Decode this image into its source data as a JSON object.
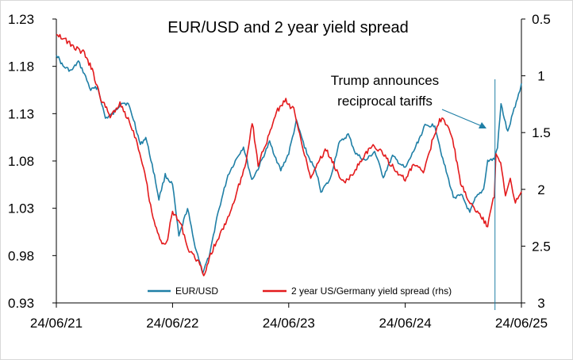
{
  "chart_data": {
    "type": "line",
    "title": "EUR/USD and 2 year yield spread",
    "colors": {
      "eurusd": "#1f7fa6",
      "spread": "#e31a1c"
    },
    "x_ticks": [
      "24/06/21",
      "24/06/22",
      "24/06/23",
      "24/06/24",
      "24/06/25"
    ],
    "y_left": {
      "ticks": [
        "1.23",
        "1.18",
        "1.13",
        "1.08",
        "1.03",
        "0.98",
        "0.93"
      ],
      "min": 0.93,
      "max": 1.23
    },
    "y_right": {
      "ticks": [
        "0.5",
        "1",
        "1.5",
        "2",
        "2.5",
        "3"
      ],
      "min": 0.5,
      "max": 3.0,
      "inverted": true
    },
    "legend_placement": "bottom",
    "annotation": {
      "line1": "Trump announces",
      "line2": "reciprocal tariffs",
      "date": "2025-04-02"
    },
    "series": [
      {
        "name": "EUR/USD",
        "axis": "left",
        "values": [
          [
            "2021-06-24",
            1.193
          ],
          [
            "2021-07-15",
            1.18
          ],
          [
            "2021-08-10",
            1.175
          ],
          [
            "2021-09-01",
            1.185
          ],
          [
            "2021-09-20",
            1.172
          ],
          [
            "2021-10-10",
            1.155
          ],
          [
            "2021-11-01",
            1.158
          ],
          [
            "2021-11-25",
            1.125
          ],
          [
            "2021-12-20",
            1.13
          ],
          [
            "2022-01-15",
            1.142
          ],
          [
            "2022-02-05",
            1.14
          ],
          [
            "2022-02-25",
            1.12
          ],
          [
            "2022-03-15",
            1.097
          ],
          [
            "2022-04-01",
            1.105
          ],
          [
            "2022-04-25",
            1.07
          ],
          [
            "2022-05-12",
            1.04
          ],
          [
            "2022-06-01",
            1.065
          ],
          [
            "2022-06-24",
            1.055
          ],
          [
            "2022-07-14",
            1.0
          ],
          [
            "2022-08-10",
            1.03
          ],
          [
            "2022-08-30",
            0.995
          ],
          [
            "2022-09-27",
            0.962
          ],
          [
            "2022-10-20",
            0.982
          ],
          [
            "2022-11-10",
            1.02
          ],
          [
            "2022-12-15",
            1.065
          ],
          [
            "2023-01-15",
            1.085
          ],
          [
            "2023-02-02",
            1.095
          ],
          [
            "2023-02-28",
            1.06
          ],
          [
            "2023-03-20",
            1.072
          ],
          [
            "2023-04-25",
            1.1
          ],
          [
            "2023-05-30",
            1.07
          ],
          [
            "2023-06-24",
            1.088
          ],
          [
            "2023-07-18",
            1.122
          ],
          [
            "2023-08-20",
            1.088
          ],
          [
            "2023-09-20",
            1.067
          ],
          [
            "2023-10-03",
            1.048
          ],
          [
            "2023-11-01",
            1.06
          ],
          [
            "2023-11-28",
            1.098
          ],
          [
            "2023-12-28",
            1.108
          ],
          [
            "2024-01-20",
            1.088
          ],
          [
            "2024-02-20",
            1.08
          ],
          [
            "2024-03-20",
            1.09
          ],
          [
            "2024-04-16",
            1.063
          ],
          [
            "2024-05-15",
            1.085
          ],
          [
            "2024-06-24",
            1.072
          ],
          [
            "2024-07-20",
            1.09
          ],
          [
            "2024-08-25",
            1.117
          ],
          [
            "2024-09-25",
            1.118
          ],
          [
            "2024-10-20",
            1.082
          ],
          [
            "2024-11-22",
            1.042
          ],
          [
            "2024-12-20",
            1.043
          ],
          [
            "2025-01-13",
            1.025
          ],
          [
            "2025-01-30",
            1.04
          ],
          [
            "2025-02-25",
            1.05
          ],
          [
            "2025-03-10",
            1.08
          ],
          [
            "2025-03-31",
            1.082
          ],
          [
            "2025-04-10",
            1.095
          ],
          [
            "2025-04-21",
            1.14
          ],
          [
            "2025-05-12",
            1.11
          ],
          [
            "2025-06-01",
            1.135
          ],
          [
            "2025-06-15",
            1.15
          ],
          [
            "2025-06-24",
            1.162
          ]
        ]
      },
      {
        "name": "2 year US/Germany yield spread (rhs)",
        "axis": "right",
        "values": [
          [
            "2021-06-24",
            0.62
          ],
          [
            "2021-07-20",
            0.68
          ],
          [
            "2021-08-20",
            0.75
          ],
          [
            "2021-09-20",
            0.8
          ],
          [
            "2021-10-15",
            0.95
          ],
          [
            "2021-11-10",
            1.2
          ],
          [
            "2021-12-10",
            1.35
          ],
          [
            "2022-01-10",
            1.25
          ],
          [
            "2022-02-05",
            1.38
          ],
          [
            "2022-03-01",
            1.55
          ],
          [
            "2022-03-25",
            1.8
          ],
          [
            "2022-04-20",
            2.2
          ],
          [
            "2022-05-15",
            2.45
          ],
          [
            "2022-06-05",
            2.48
          ],
          [
            "2022-06-24",
            2.2
          ],
          [
            "2022-07-20",
            2.3
          ],
          [
            "2022-08-15",
            2.55
          ],
          [
            "2022-09-10",
            2.62
          ],
          [
            "2022-09-30",
            2.75
          ],
          [
            "2022-10-25",
            2.55
          ],
          [
            "2022-11-20",
            2.4
          ],
          [
            "2022-12-15",
            2.25
          ],
          [
            "2023-01-10",
            2.05
          ],
          [
            "2023-02-10",
            1.75
          ],
          [
            "2023-03-01",
            1.4
          ],
          [
            "2023-03-20",
            1.78
          ],
          [
            "2023-04-20",
            1.55
          ],
          [
            "2023-05-20",
            1.3
          ],
          [
            "2023-06-15",
            1.22
          ],
          [
            "2023-07-10",
            1.3
          ],
          [
            "2023-08-01",
            1.55
          ],
          [
            "2023-09-01",
            1.9
          ],
          [
            "2023-09-25",
            1.75
          ],
          [
            "2023-10-20",
            1.65
          ],
          [
            "2023-11-15",
            1.8
          ],
          [
            "2023-12-15",
            1.95
          ],
          [
            "2024-01-15",
            1.85
          ],
          [
            "2024-02-15",
            1.7
          ],
          [
            "2024-03-15",
            1.62
          ],
          [
            "2024-04-15",
            1.68
          ],
          [
            "2024-05-15",
            1.8
          ],
          [
            "2024-06-24",
            1.92
          ],
          [
            "2024-07-20",
            1.78
          ],
          [
            "2024-08-20",
            1.85
          ],
          [
            "2024-09-20",
            1.55
          ],
          [
            "2024-10-10",
            1.38
          ],
          [
            "2024-10-25",
            1.4
          ],
          [
            "2024-11-20",
            1.55
          ],
          [
            "2024-12-15",
            1.95
          ],
          [
            "2025-01-10",
            2.1
          ],
          [
            "2025-01-30",
            2.18
          ],
          [
            "2025-02-20",
            2.25
          ],
          [
            "2025-03-10",
            2.32
          ],
          [
            "2025-03-31",
            2.05
          ],
          [
            "2025-04-05",
            1.7
          ],
          [
            "2025-04-20",
            1.75
          ],
          [
            "2025-05-05",
            2.05
          ],
          [
            "2025-05-20",
            1.9
          ],
          [
            "2025-06-05",
            2.12
          ],
          [
            "2025-06-24",
            2.02
          ]
        ]
      }
    ]
  }
}
